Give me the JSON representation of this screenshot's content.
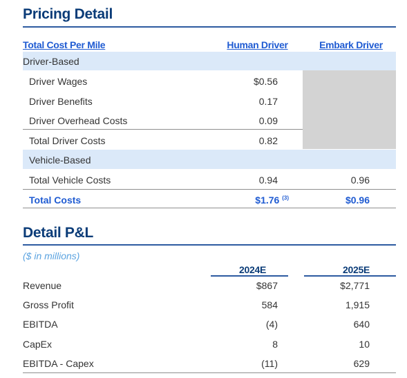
{
  "pricing": {
    "title": "Pricing Detail",
    "headers": {
      "label": "Total Cost Per Mile",
      "human": "Human Driver",
      "embark": "Embark Driver"
    },
    "driver_section": "Driver-Based",
    "driver_rows": [
      {
        "label": "Driver Wages",
        "human": "$0.56"
      },
      {
        "label": "Driver Benefits",
        "human": "0.17"
      },
      {
        "label": "Driver Overhead Costs",
        "human": "0.09"
      },
      {
        "label": "Total Driver Costs",
        "human": "0.82"
      }
    ],
    "vehicle_section": "Vehicle-Based",
    "vehicle_row": {
      "label": "Total Vehicle Costs",
      "human": "0.94",
      "embark": "0.96"
    },
    "total_row": {
      "label": "Total Costs",
      "human": "$1.76",
      "footnote": "(3)",
      "embark": "$0.96"
    }
  },
  "pl": {
    "title": "Detail P&L",
    "units": "($ in millions)",
    "headers": {
      "y1": "2024E",
      "y2": "2025E"
    },
    "rows": [
      {
        "label": "Revenue",
        "y1": "$867",
        "y2": "$2,771"
      },
      {
        "label": "Gross Profit",
        "y1": "584",
        "y2": "1,915"
      },
      {
        "label": "EBITDA",
        "y1": "(4)",
        "y2": "640"
      },
      {
        "label": "CapEx",
        "y1": "8",
        "y2": "10"
      },
      {
        "label": "EBITDA - Capex",
        "y1": "(11)",
        "y2": "629"
      }
    ]
  }
}
